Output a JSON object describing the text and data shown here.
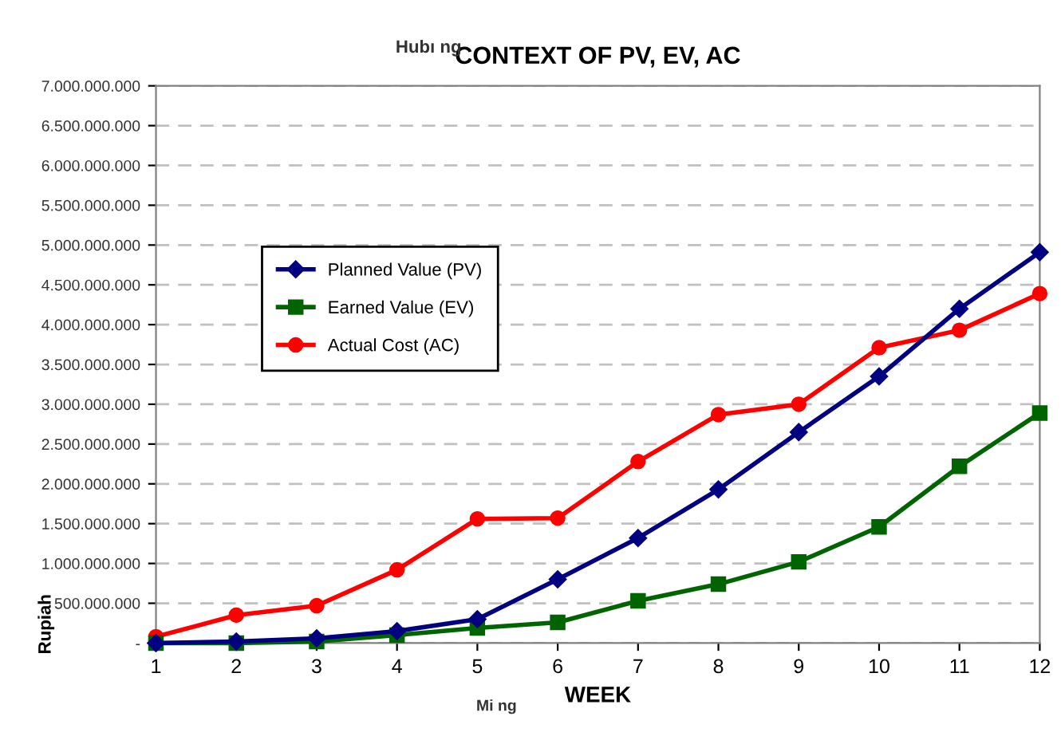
{
  "chart_data": {
    "type": "line",
    "title": "CONTEXT OF PV, EV, AC",
    "xlabel": "WEEK",
    "ylabel": "Rupiah",
    "annotations": [
      "Hubı ng",
      "Mi ng"
    ],
    "categories": [
      "1",
      "2",
      "3",
      "4",
      "5",
      "6",
      "7",
      "8",
      "9",
      "10",
      "11",
      "12"
    ],
    "series": [
      {
        "name": "Planned Value (PV)",
        "color": "#000080",
        "marker": "diamond",
        "values": [
          0,
          20000000,
          60000000,
          150000000,
          300000000,
          800000000,
          1320000000,
          1930000000,
          2650000000,
          3350000000,
          4200000000,
          4910000000
        ]
      },
      {
        "name": "Earned Value (EV)",
        "color": "#006400",
        "marker": "square",
        "values": [
          0,
          0,
          20000000,
          100000000,
          190000000,
          260000000,
          530000000,
          740000000,
          1020000000,
          1460000000,
          2220000000,
          2890000000
        ]
      },
      {
        "name": "Actual Cost (AC)",
        "color": "#ff0000",
        "marker": "circle",
        "values": [
          80000000,
          350000000,
          470000000,
          920000000,
          1560000000,
          1570000000,
          2280000000,
          2870000000,
          3000000000,
          3710000000,
          3930000000,
          4390000000
        ]
      }
    ],
    "ylim": [
      0,
      7000000000
    ],
    "yticks": [
      {
        "value": 0,
        "label": "-"
      },
      {
        "value": 500000000,
        "label": "500.000.000"
      },
      {
        "value": 1000000000,
        "label": "1.000.000.000"
      },
      {
        "value": 1500000000,
        "label": "1.500.000.000"
      },
      {
        "value": 2000000000,
        "label": "2.000.000.000"
      },
      {
        "value": 2500000000,
        "label": "2.500.000.000"
      },
      {
        "value": 3000000000,
        "label": "3.000.000.000"
      },
      {
        "value": 3500000000,
        "label": "3.500.000.000"
      },
      {
        "value": 4000000000,
        "label": "4.000.000.000"
      },
      {
        "value": 4500000000,
        "label": "4.500.000.000"
      },
      {
        "value": 5000000000,
        "label": "5.000.000.000"
      },
      {
        "value": 5500000000,
        "label": "5.500.000.000"
      },
      {
        "value": 6000000000,
        "label": "6.000.000.000"
      },
      {
        "value": 6500000000,
        "label": "6.500.000.000"
      },
      {
        "value": 7000000000,
        "label": "7.000.000.000"
      }
    ],
    "grid": "y",
    "legend": "left",
    "line_style": "solid"
  }
}
